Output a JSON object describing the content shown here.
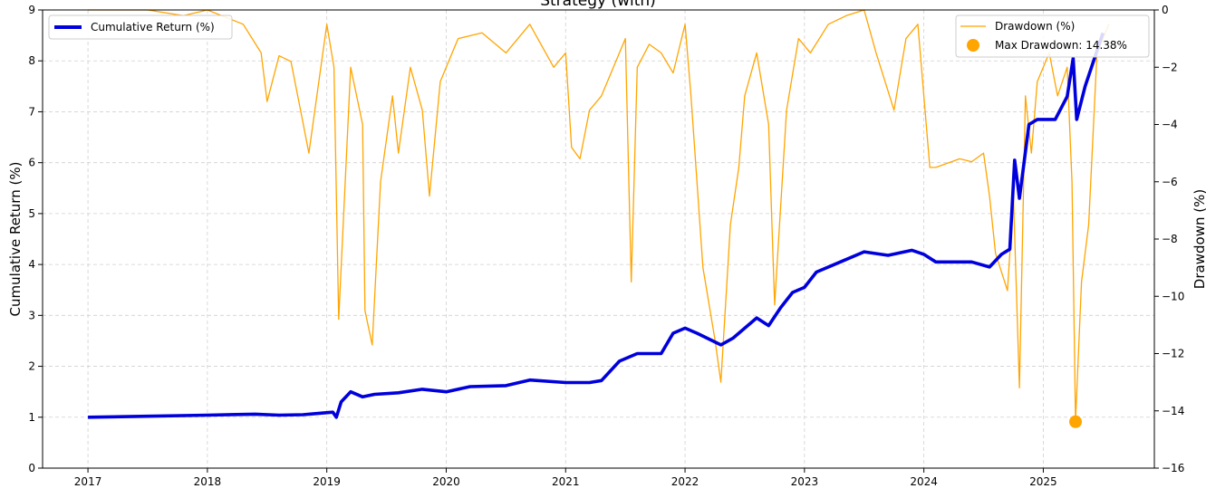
{
  "chart_data": {
    "type": "line",
    "title": "Strategy (with)",
    "ylabel_left": "Cumulative Return (%)",
    "ylabel_right": "Drawdown (%)",
    "xlim": [
      2016.62,
      2025.93
    ],
    "ylim_left": [
      0,
      9
    ],
    "ylim_right": [
      -16,
      0
    ],
    "x_ticks": [
      2017,
      2018,
      2019,
      2020,
      2021,
      2022,
      2023,
      2024,
      2025
    ],
    "x_tick_labels": [
      "2017",
      "2018",
      "2019",
      "2020",
      "2021",
      "2022",
      "2023",
      "2024",
      "2025"
    ],
    "y_left_ticks": [
      0,
      1,
      2,
      3,
      4,
      5,
      6,
      7,
      8,
      9
    ],
    "y_left_tick_labels": [
      "0",
      "1",
      "2",
      "3",
      "4",
      "5",
      "6",
      "7",
      "8",
      "9"
    ],
    "y_right_ticks": [
      0,
      -2,
      -4,
      -6,
      -8,
      -10,
      -12,
      -14,
      -16
    ],
    "y_right_tick_labels": [
      "0",
      "−2",
      "−4",
      "−6",
      "−8",
      "−10",
      "−12",
      "−14",
      "−16"
    ],
    "grid": true,
    "series": [
      {
        "name": "Cumulative Return (%)",
        "axis": "left",
        "color": "#0000dd",
        "x": [
          2017.0,
          2017.5,
          2018.0,
          2018.4,
          2018.6,
          2018.8,
          2018.95,
          2019.05,
          2019.08,
          2019.12,
          2019.2,
          2019.3,
          2019.4,
          2019.6,
          2019.8,
          2020.0,
          2020.2,
          2020.5,
          2020.7,
          2021.0,
          2021.2,
          2021.3,
          2021.45,
          2021.6,
          2021.8,
          2021.9,
          2022.0,
          2022.1,
          2022.3,
          2022.4,
          2022.6,
          2022.7,
          2022.8,
          2022.9,
          2023.0,
          2023.1,
          2023.3,
          2023.5,
          2023.7,
          2023.9,
          2024.0,
          2024.1,
          2024.4,
          2024.55,
          2024.65,
          2024.72,
          2024.76,
          2024.8,
          2024.88,
          2024.95,
          2025.1,
          2025.2,
          2025.25,
          2025.28,
          2025.35,
          2025.5
        ],
        "y": [
          1.0,
          1.02,
          1.04,
          1.06,
          1.04,
          1.05,
          1.08,
          1.1,
          1.0,
          1.3,
          1.5,
          1.4,
          1.45,
          1.48,
          1.55,
          1.5,
          1.6,
          1.62,
          1.73,
          1.68,
          1.68,
          1.72,
          2.1,
          2.25,
          2.25,
          2.65,
          2.75,
          2.65,
          2.42,
          2.55,
          2.95,
          2.8,
          3.15,
          3.45,
          3.55,
          3.85,
          4.05,
          4.25,
          4.18,
          4.28,
          4.2,
          4.05,
          4.05,
          3.95,
          4.2,
          4.3,
          6.05,
          5.3,
          6.75,
          6.85,
          6.85,
          7.3,
          8.05,
          6.85,
          7.5,
          8.55
        ]
      },
      {
        "name": "Drawdown (%)",
        "axis": "right",
        "color": "#ffa500",
        "x": [
          2017.0,
          2017.2,
          2017.5,
          2017.8,
          2018.0,
          2018.3,
          2018.45,
          2018.5,
          2018.6,
          2018.7,
          2018.78,
          2018.85,
          2019.0,
          2019.06,
          2019.1,
          2019.2,
          2019.3,
          2019.32,
          2019.38,
          2019.45,
          2019.55,
          2019.6,
          2019.7,
          2019.8,
          2019.86,
          2019.95,
          2020.1,
          2020.3,
          2020.5,
          2020.7,
          2020.9,
          2021.0,
          2021.05,
          2021.12,
          2021.2,
          2021.3,
          2021.5,
          2021.55,
          2021.6,
          2021.7,
          2021.8,
          2021.9,
          2022.0,
          2022.05,
          2022.15,
          2022.25,
          2022.3,
          2022.38,
          2022.45,
          2022.5,
          2022.6,
          2022.7,
          2022.75,
          2022.85,
          2022.95,
          2023.05,
          2023.2,
          2023.35,
          2023.5,
          2023.6,
          2023.75,
          2023.85,
          2023.95,
          2024.05,
          2024.1,
          2024.3,
          2024.4,
          2024.5,
          2024.55,
          2024.6,
          2024.7,
          2024.75,
          2024.8,
          2024.85,
          2024.9,
          2024.95,
          2025.05,
          2025.12,
          2025.2,
          2025.24,
          2025.27,
          2025.32,
          2025.38,
          2025.45,
          2025.55
        ],
        "y": [
          0.0,
          0.0,
          0.0,
          -0.2,
          0.0,
          -0.5,
          -1.5,
          -3.2,
          -1.6,
          -1.8,
          -3.5,
          -5.0,
          -0.5,
          -2.0,
          -10.8,
          -2.0,
          -4.0,
          -10.5,
          -11.7,
          -6.0,
          -3.0,
          -5.0,
          -2.0,
          -3.5,
          -6.5,
          -2.5,
          -1.0,
          -0.8,
          -1.5,
          -0.5,
          -2.0,
          -1.5,
          -4.8,
          -5.2,
          -3.5,
          -3.0,
          -1.0,
          -9.5,
          -2.0,
          -1.2,
          -1.5,
          -2.2,
          -0.5,
          -3.0,
          -9.0,
          -11.5,
          -13.0,
          -7.5,
          -5.5,
          -3.0,
          -1.5,
          -4.0,
          -10.3,
          -3.5,
          -1.0,
          -1.5,
          -0.5,
          -0.2,
          0.0,
          -1.5,
          -3.5,
          -1.0,
          -0.5,
          -5.5,
          -5.5,
          -5.2,
          -5.3,
          -5.0,
          -6.5,
          -8.5,
          -9.8,
          -6.5,
          -13.2,
          -3.0,
          -5.0,
          -2.5,
          -1.5,
          -3.0,
          -2.0,
          -6.0,
          -14.38,
          -9.5,
          -7.5,
          -1.5,
          -0.5
        ]
      }
    ],
    "max_drawdown": {
      "label": "Max Drawdown: 14.38%",
      "x": 2025.27,
      "y": -14.38,
      "color": "#ffa500"
    },
    "legend": {
      "left": {
        "placement": "top-left",
        "entries": [
          "Cumulative Return (%)"
        ]
      },
      "right": {
        "placement": "top-right",
        "entries": [
          "Drawdown (%)",
          "Max Drawdown: 14.38%"
        ]
      }
    }
  }
}
